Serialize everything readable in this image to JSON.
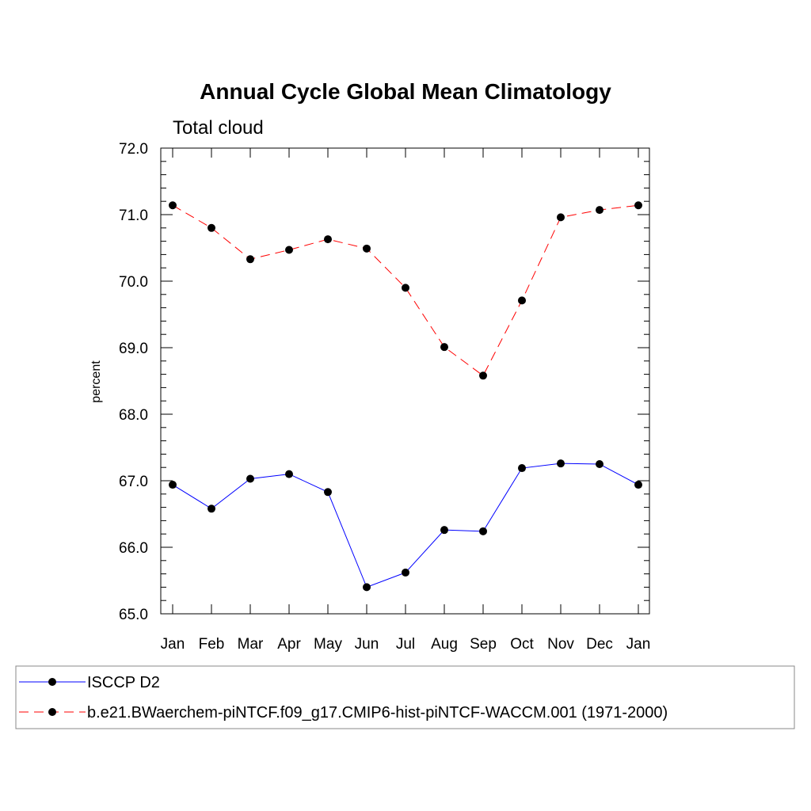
{
  "chart_data": {
    "type": "line",
    "title": "Annual Cycle Global Mean Climatology",
    "subtitle": "Total cloud",
    "ylabel": "percent",
    "xlabel": "",
    "categories": [
      "Jan",
      "Feb",
      "Mar",
      "Apr",
      "May",
      "Jun",
      "Jul",
      "Aug",
      "Sep",
      "Oct",
      "Nov",
      "Dec",
      "Jan"
    ],
    "ylim": [
      65.0,
      72.0
    ],
    "yticks": [
      "65.0",
      "66.0",
      "67.0",
      "68.0",
      "69.0",
      "70.0",
      "71.0",
      "72.0"
    ],
    "grid": false,
    "legend_position": "bottom",
    "series": [
      {
        "name": "ISCCP D2",
        "color": "#0000ff",
        "dash": "solid",
        "values": [
          66.94,
          66.58,
          67.03,
          67.1,
          66.83,
          65.4,
          65.62,
          66.26,
          66.24,
          67.19,
          67.26,
          67.25,
          66.94
        ]
      },
      {
        "name": "b.e21.BWaerchem-piNTCF.f09_g17.CMIP6-hist-piNTCF-WACCM.001 (1971-2000)",
        "color": "#ff0000",
        "dash": "dashed",
        "values": [
          71.14,
          70.8,
          70.33,
          70.47,
          70.63,
          70.49,
          69.9,
          69.01,
          68.58,
          69.71,
          70.96,
          71.07,
          71.14
        ]
      }
    ]
  }
}
